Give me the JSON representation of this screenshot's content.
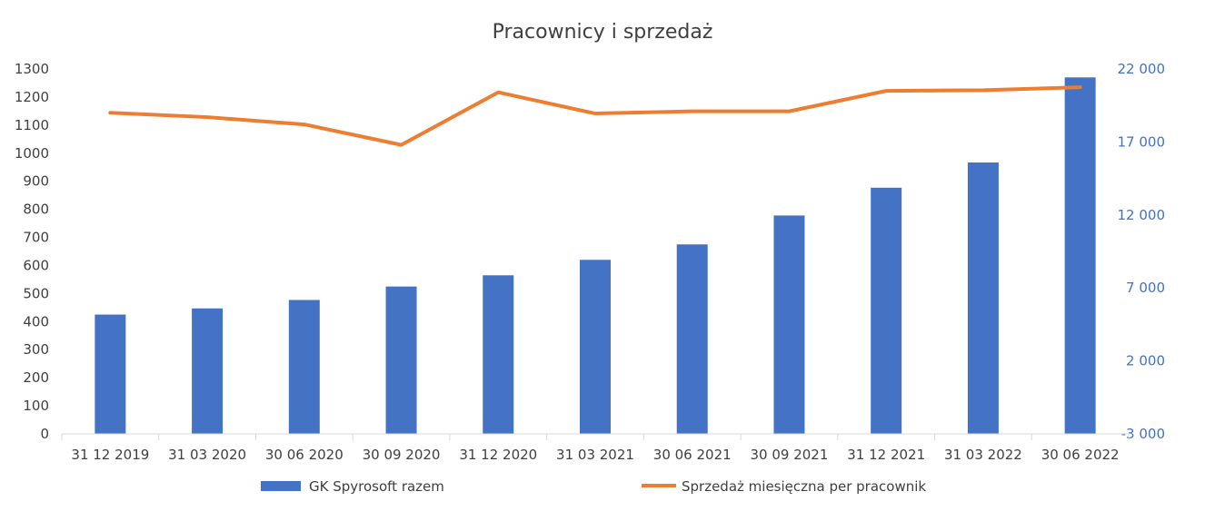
{
  "chart_data": {
    "type": "bar",
    "title": "Pracownicy  i sprzedaż",
    "categories": [
      "31 12 2019",
      "31 03 2020",
      "30 06 2020",
      "30 09 2020",
      "31 12 2020",
      "31 03 2021",
      "30 06 2021",
      "30 09 2021",
      "31 12 2021",
      "31 03 2022",
      "30 06 2022"
    ],
    "series": [
      {
        "name": "GK Spyrosoft razem",
        "type": "bar",
        "axis": "left",
        "color": "#4472c4",
        "values": [
          425,
          447,
          477,
          525,
          565,
          620,
          675,
          778,
          877,
          967,
          1270
        ]
      },
      {
        "name": "Sprzedaż miesięczna per pracownik",
        "type": "line",
        "axis": "right",
        "color": "#ed7d31",
        "values": [
          19000,
          18700,
          18200,
          16800,
          20400,
          18950,
          19100,
          19100,
          20500,
          20550,
          20750
        ]
      }
    ],
    "y_left": {
      "lim": [
        0,
        1300
      ],
      "ticks": [
        0,
        100,
        200,
        300,
        400,
        500,
        600,
        700,
        800,
        900,
        1000,
        1100,
        1200,
        1300
      ],
      "tick_labels": [
        "0",
        "100",
        "200",
        "300",
        "400",
        "500",
        "600",
        "700",
        "800",
        "900",
        "1000",
        "1100",
        "1200",
        "1300"
      ]
    },
    "y_right": {
      "lim": [
        -3000,
        22000
      ],
      "ticks": [
        -3000,
        2000,
        7000,
        12000,
        17000,
        22000
      ],
      "tick_labels": [
        "-3 000",
        "2 000",
        "7 000",
        "12 000",
        "17 000",
        "22 000"
      ]
    },
    "grid": false,
    "legend_position": "bottom"
  }
}
